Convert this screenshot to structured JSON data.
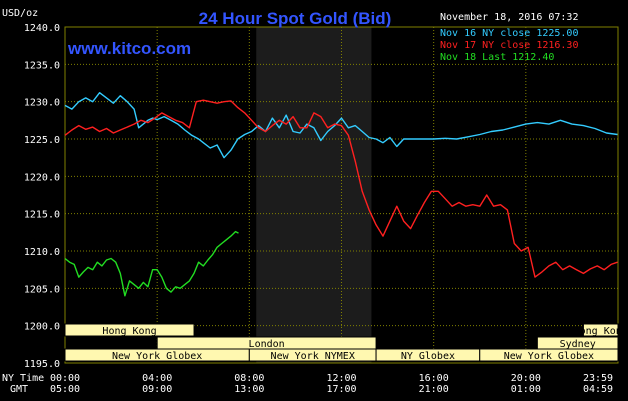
{
  "chart_data": {
    "type": "line",
    "title": "24 Hour Spot Gold (Bid)",
    "site": "www.kitco.com",
    "unit_label": "USD/oz",
    "timestamp": "November 18, 2016 07:32",
    "ylim": [
      1195.0,
      1240.0
    ],
    "y_ticks": [
      "1240.0",
      "1235.0",
      "1230.0",
      "1225.0",
      "1220.0",
      "1215.0",
      "1210.0",
      "1205.0",
      "1200.0",
      "1195.0"
    ],
    "x_tick_ny": [
      "00:00",
      "04:00",
      "08:00",
      "12:00",
      "16:00",
      "20:00",
      "23:59"
    ],
    "x_tick_gmt": [
      "05:00",
      "09:00",
      "13:00",
      "17:00",
      "21:00",
      "01:00",
      "04:59"
    ],
    "row_labels": {
      "ny": "NY Time",
      "gmt": "GMT"
    },
    "colors": {
      "background": "#000000",
      "grid": "#808000",
      "text": "#ffffff",
      "title": "#3355ff",
      "shade": "#1c1c1c",
      "session_fill": "#fff8b0"
    },
    "sessions": [
      {
        "name": "Hong Kong",
        "start": 0.0,
        "end": 5.6,
        "row": 0
      },
      {
        "name": "Hong Kong",
        "start": 22.5,
        "end": 24.0,
        "row": 0
      },
      {
        "name": "London",
        "start": 4.0,
        "end": 13.5,
        "row": 1
      },
      {
        "name": "Sydney",
        "start": 20.5,
        "end": 24.0,
        "row": 1
      },
      {
        "name": "New York Globex",
        "start": 0.0,
        "end": 8.0,
        "row": 2
      },
      {
        "name": "New York NYMEX",
        "start": 8.0,
        "end": 13.5,
        "row": 2
      },
      {
        "name": "NY Globex",
        "start": 13.5,
        "end": 18.0,
        "row": 2
      },
      {
        "name": "New York Globex",
        "start": 18.0,
        "end": 24.0,
        "row": 2
      }
    ],
    "shaded_period": {
      "start": 8.3,
      "end": 13.3
    },
    "series": [
      {
        "name": "Nov 16 NY close 1225.00",
        "color": "#33ccff",
        "x": [
          0,
          0.3,
          0.6,
          0.9,
          1.2,
          1.5,
          1.8,
          2.1,
          2.4,
          2.7,
          3.0,
          3.2,
          3.4,
          3.6,
          3.8,
          4.0,
          4.3,
          4.6,
          4.9,
          5.2,
          5.5,
          5.8,
          6.0,
          6.3,
          6.6,
          6.9,
          7.2,
          7.5,
          7.8,
          8.1,
          8.4,
          8.7,
          9.0,
          9.3,
          9.6,
          9.9,
          10.2,
          10.5,
          10.8,
          11.1,
          11.4,
          11.7,
          12.0,
          12.3,
          12.6,
          12.9,
          13.2,
          13.5,
          13.8,
          14.1,
          14.4,
          14.7,
          15.0,
          15.5,
          16.0,
          16.5,
          17.0,
          17.5,
          18.0,
          18.5,
          19.0,
          19.5,
          20.0,
          20.5,
          21.0,
          21.5,
          22.0,
          22.5,
          23.0,
          23.5,
          23.98
        ],
        "y": [
          1229.5,
          1229.0,
          1230.0,
          1230.5,
          1230.0,
          1231.2,
          1230.5,
          1229.8,
          1230.8,
          1230.0,
          1229.0,
          1226.5,
          1227.0,
          1227.5,
          1227.8,
          1227.6,
          1228.0,
          1227.5,
          1227.0,
          1226.2,
          1225.5,
          1225.0,
          1224.5,
          1223.8,
          1224.2,
          1222.5,
          1223.5,
          1225.0,
          1225.6,
          1226.0,
          1226.8,
          1226.0,
          1227.8,
          1226.5,
          1228.2,
          1226.0,
          1225.8,
          1227.0,
          1226.5,
          1224.8,
          1226.0,
          1226.8,
          1227.8,
          1226.5,
          1226.8,
          1226.0,
          1225.2,
          1225.0,
          1224.5,
          1225.2,
          1224.0,
          1225.0,
          1225.0,
          1225.0,
          1225.0,
          1225.1,
          1225.0,
          1225.3,
          1225.6,
          1226.0,
          1226.2,
          1226.6,
          1227.0,
          1227.2,
          1227.0,
          1227.5,
          1227.0,
          1226.8,
          1226.4,
          1225.8,
          1225.6
        ]
      },
      {
        "name": "Nov 17 NY close 1216.30",
        "color": "#ff2020",
        "x": [
          0,
          0.3,
          0.6,
          0.9,
          1.2,
          1.5,
          1.8,
          2.1,
          2.4,
          2.7,
          3.0,
          3.3,
          3.6,
          3.9,
          4.2,
          4.5,
          4.8,
          5.1,
          5.4,
          5.7,
          6.0,
          6.3,
          6.6,
          6.9,
          7.2,
          7.5,
          7.8,
          8.1,
          8.4,
          8.7,
          9.0,
          9.3,
          9.6,
          9.9,
          10.2,
          10.5,
          10.8,
          11.1,
          11.4,
          11.7,
          12.0,
          12.3,
          12.6,
          12.9,
          13.2,
          13.5,
          13.8,
          14.1,
          14.4,
          14.7,
          15.0,
          15.3,
          15.6,
          15.9,
          16.2,
          16.5,
          16.8,
          17.1,
          17.4,
          17.7,
          18.0,
          18.3,
          18.6,
          18.9,
          19.2,
          19.5,
          19.8,
          20.1,
          20.4,
          20.7,
          21.0,
          21.3,
          21.6,
          21.9,
          22.2,
          22.5,
          22.8,
          23.1,
          23.4,
          23.7,
          23.98
        ],
        "y": [
          1225.5,
          1226.2,
          1226.8,
          1226.3,
          1226.6,
          1226.0,
          1226.4,
          1225.8,
          1226.2,
          1226.6,
          1227.0,
          1227.5,
          1227.2,
          1227.8,
          1228.5,
          1228.0,
          1227.5,
          1227.2,
          1226.5,
          1230.0,
          1230.2,
          1230.0,
          1229.8,
          1230.0,
          1230.1,
          1229.2,
          1228.5,
          1227.5,
          1226.5,
          1226.0,
          1226.8,
          1227.5,
          1227.0,
          1228.0,
          1226.5,
          1226.5,
          1228.5,
          1228.0,
          1226.5,
          1227.0,
          1226.8,
          1225.5,
          1222.0,
          1218.0,
          1215.5,
          1213.5,
          1212.0,
          1214.0,
          1216.0,
          1214.0,
          1213.0,
          1214.8,
          1216.5,
          1218.0,
          1218.0,
          1217.0,
          1216.0,
          1216.5,
          1216.0,
          1216.2,
          1216.0,
          1217.5,
          1216.0,
          1216.2,
          1215.5,
          1211.0,
          1210.0,
          1210.5,
          1206.5,
          1207.2,
          1208.0,
          1208.5,
          1207.5,
          1208.0,
          1207.5,
          1207.0,
          1207.6,
          1208.0,
          1207.5,
          1208.2,
          1208.5
        ]
      },
      {
        "name": "Nov 18 Last 1212.40",
        "color": "#22dd22",
        "x": [
          0,
          0.2,
          0.4,
          0.6,
          0.8,
          1.0,
          1.2,
          1.4,
          1.6,
          1.8,
          2.0,
          2.2,
          2.4,
          2.6,
          2.8,
          3.0,
          3.2,
          3.4,
          3.6,
          3.8,
          4.0,
          4.2,
          4.4,
          4.6,
          4.8,
          5.0,
          5.2,
          5.4,
          5.6,
          5.8,
          6.0,
          6.2,
          6.4,
          6.6,
          6.8,
          7.0,
          7.2,
          7.4,
          7.53
        ],
        "y": [
          1209.0,
          1208.5,
          1208.2,
          1206.5,
          1207.2,
          1207.8,
          1207.5,
          1208.5,
          1208.0,
          1208.8,
          1209.0,
          1208.5,
          1207.0,
          1204.0,
          1206.0,
          1205.5,
          1205.0,
          1205.8,
          1205.2,
          1207.5,
          1207.5,
          1206.5,
          1205.0,
          1204.5,
          1205.2,
          1205.0,
          1205.5,
          1206.0,
          1207.0,
          1208.5,
          1208.0,
          1208.8,
          1209.5,
          1210.5,
          1211.0,
          1211.5,
          1212.0,
          1212.6,
          1212.4
        ]
      }
    ]
  }
}
